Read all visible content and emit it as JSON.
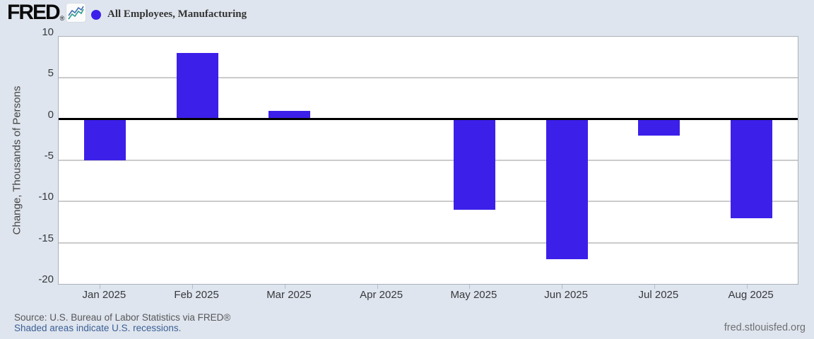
{
  "header": {
    "logo_text": "FRED",
    "logo_registered": "®",
    "legend_label": "All Employees, Manufacturing"
  },
  "chart_data": {
    "type": "bar",
    "title": "",
    "series": [
      {
        "name": "All Employees, Manufacturing",
        "values": [
          -5,
          8,
          1,
          0,
          -11,
          -17,
          -2,
          -12
        ]
      }
    ],
    "categories": [
      "Jan 2025",
      "Feb 2025",
      "Mar 2025",
      "Apr 2025",
      "May 2025",
      "Jun 2025",
      "Jul 2025",
      "Aug 2025"
    ],
    "xlabel": "",
    "ylabel": "Change, Thousands of Persons",
    "ylim": [
      -20,
      10
    ],
    "yticks": [
      10,
      5,
      0,
      -5,
      -10,
      -15,
      -20
    ],
    "gridline_values": [
      5,
      -5,
      -10,
      -15
    ],
    "zero_line_value": 0,
    "grid": true,
    "legend_position": "top-left",
    "units": "Thousands of Persons"
  },
  "footer": {
    "source": "Source: U.S. Bureau of Labor Statistics via FRED®",
    "recession_note": "Shaded areas indicate U.S. recessions.",
    "site_url": "fred.stlouisfed.org"
  },
  "colors": {
    "background": "#dfe5ee",
    "plot_background": "#ffffff",
    "bar": "#3c20e9",
    "legend_marker": "#3c20e9",
    "gridline": "#cbcbcb",
    "zero_line": "#000000",
    "link": "#3a5f96",
    "logo_icon_teal": "#2e9c8d",
    "logo_icon_blue": "#3c6eb0"
  }
}
